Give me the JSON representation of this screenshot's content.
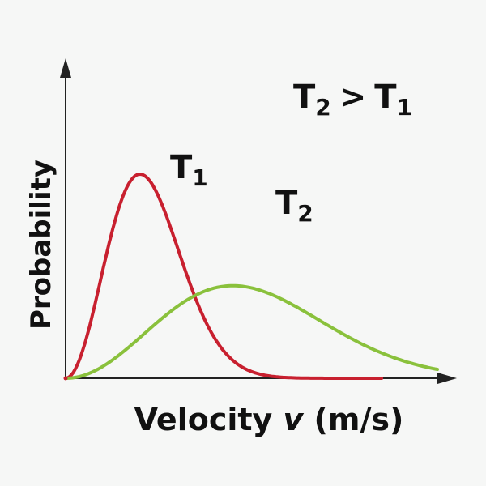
{
  "chart_data": {
    "type": "line",
    "title": "",
    "xlabel": {
      "prefix": "Velocity ",
      "var": "v",
      "unit": " (m/s)"
    },
    "ylabel": "Probability",
    "annotation": {
      "left": "T",
      "left_sub": "2",
      "op": ">",
      "right": "T",
      "right_sub": "1"
    },
    "grid": false,
    "axis_ticks": false,
    "series": [
      {
        "name": "T",
        "subscript": "1",
        "color": "#c8202f",
        "peak_x": 0.2,
        "tail_end_x": 0.85,
        "end_value": 0.05
      },
      {
        "name": "T",
        "subscript": "2",
        "color": "#8ac13c",
        "peak_x": 0.45,
        "tail_end_x": 1.0,
        "end_value": 0.05
      }
    ]
  }
}
